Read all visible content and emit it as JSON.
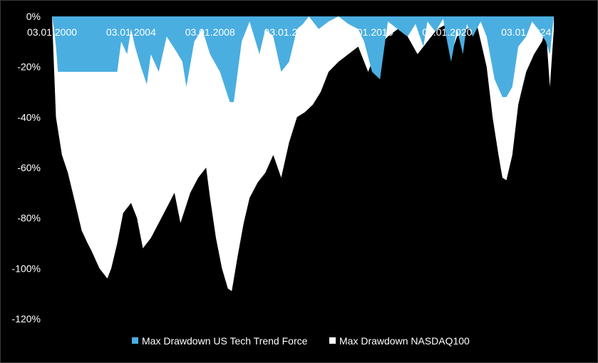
{
  "chart_data": {
    "type": "area",
    "title": "",
    "xlabel": "",
    "ylabel": "",
    "ylim": [
      -120,
      0
    ],
    "y_ticks": [
      "0%",
      "-20%",
      "-40%",
      "-60%",
      "-80%",
      "-100%",
      "-120%"
    ],
    "y_tick_values": [
      0,
      -20,
      -40,
      -60,
      -80,
      -100,
      -120
    ],
    "x_ticks": [
      "03.01.2000",
      "03.01.2004",
      "03.01.2008",
      "03.01.2012",
      "03.01.2016",
      "03.01.2020",
      "03.01.2024"
    ],
    "x_tick_values": [
      2000.0,
      2004.0,
      2008.0,
      2012.0,
      2016.0,
      2020.0,
      2024.0
    ],
    "xlim": [
      2000.0,
      2025.4
    ],
    "grid": false,
    "legend_position": "bottom",
    "colors": {
      "background": "#000000",
      "series1": "#4AAEE0",
      "series2": "#FFFFFF",
      "text": "#FFFFFF"
    },
    "series": [
      {
        "name": "Max Drawdown US Tech Trend Force",
        "x": [
          2000.0,
          2000.1,
          2000.2,
          2000.3,
          2002.0,
          2003.3,
          2003.5,
          2003.8,
          2004.0,
          2004.2,
          2004.5,
          2004.8,
          2005.0,
          2005.4,
          2005.8,
          2006.3,
          2006.6,
          2006.8,
          2007.2,
          2007.6,
          2008.0,
          2008.5,
          2009.0,
          2009.2,
          2009.6,
          2010.0,
          2010.5,
          2010.8,
          2011.2,
          2011.6,
          2012.0,
          2012.4,
          2012.7,
          2013.0,
          2013.5,
          2014.0,
          2014.5,
          2015.0,
          2015.5,
          2015.8,
          2016.2,
          2016.6,
          2017.0,
          2017.5,
          2018.0,
          2018.4,
          2018.8,
          2019.0,
          2019.4,
          2019.8,
          2020.0,
          2020.2,
          2020.5,
          2020.8,
          2021.0,
          2021.3,
          2021.7,
          2022.0,
          2022.4,
          2022.8,
          2023.0,
          2023.3,
          2023.6,
          2024.0,
          2024.3,
          2024.6,
          2025.0,
          2025.2,
          2025.4
        ],
        "values": [
          0,
          -5,
          -12,
          -22,
          -22,
          -22,
          -10,
          -15,
          -5,
          -12,
          -20,
          -27,
          -15,
          -22,
          -8,
          -14,
          -18,
          -28,
          -10,
          -5,
          -15,
          -22,
          -34,
          -34,
          -10,
          -2,
          -15,
          -5,
          -8,
          -22,
          -18,
          -5,
          -3,
          0,
          -5,
          -2,
          0,
          -3,
          -5,
          -10,
          -22,
          -25,
          -2,
          -5,
          -8,
          -3,
          -12,
          -2,
          -6,
          -1,
          -10,
          -18,
          -5,
          -15,
          -3,
          -8,
          -2,
          -8,
          -25,
          -32,
          -32,
          -28,
          -12,
          -8,
          -2,
          -5,
          -10,
          -15,
          0
        ]
      },
      {
        "name": "Max Drawdown NASDAQ100",
        "x": [
          2000.0,
          2000.2,
          2000.5,
          2000.8,
          2001.2,
          2001.5,
          2001.8,
          2002.0,
          2002.4,
          2002.8,
          2003.0,
          2003.3,
          2003.6,
          2004.0,
          2004.3,
          2004.6,
          2005.0,
          2005.4,
          2005.8,
          2006.2,
          2006.5,
          2007.0,
          2007.4,
          2007.8,
          2008.0,
          2008.3,
          2008.6,
          2008.9,
          2009.1,
          2009.4,
          2009.7,
          2010.0,
          2010.4,
          2010.8,
          2011.2,
          2011.6,
          2012.0,
          2012.4,
          2012.8,
          2013.2,
          2013.6,
          2014.0,
          2014.5,
          2015.0,
          2015.5,
          2016.0,
          2016.5,
          2017.0,
          2017.5,
          2018.0,
          2018.5,
          2019.0,
          2019.5,
          2020.0,
          2020.2,
          2020.5,
          2021.0,
          2021.5,
          2022.0,
          2022.3,
          2022.6,
          2022.8,
          2023.0,
          2023.3,
          2023.6,
          2024.0,
          2024.4,
          2024.8,
          2025.0,
          2025.2,
          2025.4
        ],
        "values": [
          0,
          -40,
          -55,
          -62,
          -75,
          -85,
          -90,
          -93,
          -100,
          -104,
          -100,
          -90,
          -78,
          -74,
          -80,
          -92,
          -88,
          -82,
          -76,
          -70,
          -82,
          -70,
          -64,
          -60,
          -72,
          -88,
          -100,
          -108,
          -109,
          -95,
          -82,
          -72,
          -66,
          -62,
          -55,
          -64,
          -50,
          -40,
          -38,
          -35,
          -30,
          -22,
          -18,
          -15,
          -12,
          -22,
          -12,
          -8,
          -5,
          -8,
          -15,
          -10,
          -5,
          -3,
          -15,
          -8,
          -5,
          -3,
          -20,
          -40,
          -55,
          -64,
          -65,
          -55,
          -35,
          -22,
          -15,
          -10,
          -5,
          -28,
          -5
        ]
      }
    ]
  }
}
